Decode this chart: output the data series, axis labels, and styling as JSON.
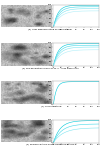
{
  "panels": [
    {
      "label": "(a) High agglomeration of raw material",
      "curves": [
        {
          "y_end": 97,
          "color": "#00c8d8",
          "lw": 0.4,
          "tau": 12
        },
        {
          "y_end": 90,
          "color": "#40d8e8",
          "lw": 0.4,
          "tau": 14
        },
        {
          "y_end": 82,
          "color": "#80e4f0",
          "lw": 0.4,
          "tau": 16
        },
        {
          "y_end": 72,
          "color": "#b0eef8",
          "lw": 0.4,
          "tau": 18
        }
      ]
    },
    {
      "label": "(b) Mid generation made at 40°C - high dissolution",
      "curves": [
        {
          "y_end": 97,
          "color": "#00c8d8",
          "lw": 0.4,
          "tau": 12
        },
        {
          "y_end": 90,
          "color": "#40d8e8",
          "lw": 0.4,
          "tau": 14
        },
        {
          "y_end": 82,
          "color": "#80e4f0",
          "lw": 0.4,
          "tau": 16
        },
        {
          "y_end": 70,
          "color": "#b0eef8",
          "lw": 0.4,
          "tau": 18
        }
      ]
    },
    {
      "label": "(c) current batch",
      "curves": [
        {
          "y_end": 99,
          "color": "#00c8d8",
          "lw": 0.4,
          "tau": 8
        }
      ]
    },
    {
      "label": "(d) pharmaceutical grade from third source",
      "curves": [
        {
          "y_end": 97,
          "color": "#00c8d8",
          "lw": 0.4,
          "tau": 18
        },
        {
          "y_end": 82,
          "color": "#40d8e8",
          "lw": 0.4,
          "tau": 22
        },
        {
          "y_end": 65,
          "color": "#80e4f0",
          "lw": 0.4,
          "tau": 26
        }
      ]
    }
  ],
  "x_max": 120,
  "ylim": [
    0,
    100
  ],
  "bg_color": "#ffffff",
  "img_bg": "#e8e8e8",
  "yticks": [
    0,
    20,
    40,
    60,
    80,
    100
  ],
  "xticks": [
    0,
    20,
    40,
    60,
    80,
    100,
    120
  ]
}
